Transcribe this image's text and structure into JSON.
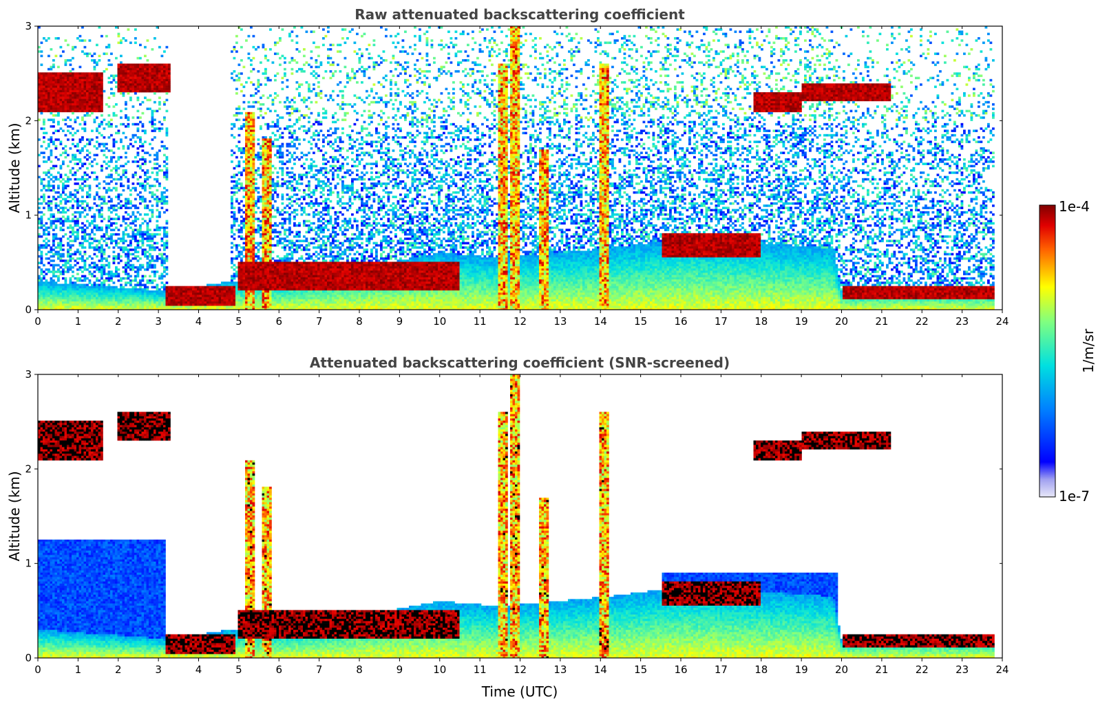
{
  "chart_data": [
    {
      "type": "heatmap",
      "title": "Raw attenuated backscattering coefficient",
      "xlabel": "",
      "ylabel": "Altitude (km)",
      "xlim": [
        0,
        24
      ],
      "ylim": [
        0,
        3
      ],
      "xticks": [
        "0",
        "1",
        "2",
        "3",
        "4",
        "5",
        "6",
        "7",
        "8",
        "9",
        "10",
        "11",
        "12",
        "13",
        "14",
        "15",
        "16",
        "17",
        "18",
        "19",
        "20",
        "21",
        "22",
        "23",
        "24"
      ],
      "yticks": [
        "0",
        "1",
        "2",
        "3"
      ],
      "colorscale": "jet",
      "color_range": [
        1e-07,
        0.0001
      ],
      "features": {
        "boundary_layer": [
          [
            0,
            0.3
          ],
          [
            3.2,
            0.2
          ],
          [
            4.8,
            0.3
          ],
          [
            6,
            0.3
          ],
          [
            8,
            0.45
          ],
          [
            10,
            0.6
          ],
          [
            11.5,
            0.55
          ],
          [
            14.2,
            0.65
          ],
          [
            16,
            0.75
          ],
          [
            18,
            0.7
          ],
          [
            19.8,
            0.65
          ],
          [
            20,
            0.2
          ],
          [
            23.8,
            0.22
          ]
        ],
        "cloud_layers": [
          {
            "x": [
              0,
              1.6
            ],
            "y": [
              2.1,
              2.5
            ]
          },
          {
            "x": [
              2.0,
              3.3
            ],
            "y": [
              2.3,
              2.6
            ]
          },
          {
            "x": [
              3.2,
              4.9
            ],
            "y": [
              0.05,
              0.25
            ]
          },
          {
            "x": [
              5.0,
              10.5
            ],
            "y": [
              0.2,
              0.5
            ]
          },
          {
            "x": [
              15.5,
              18.0
            ],
            "y": [
              0.55,
              0.8
            ]
          },
          {
            "x": [
              17.8,
              19.0
            ],
            "y": [
              2.1,
              2.3
            ]
          },
          {
            "x": [
              19.0,
              21.2
            ],
            "y": [
              2.2,
              2.4
            ]
          },
          {
            "x": [
              20.0,
              23.8
            ],
            "y": [
              0.1,
              0.25
            ]
          }
        ],
        "precipitation_shafts": [
          [
            5.3,
            2.1
          ],
          [
            5.7,
            1.8
          ],
          [
            11.6,
            2.6
          ],
          [
            11.9,
            3.0
          ],
          [
            12.6,
            1.7
          ],
          [
            14.1,
            2.6
          ]
        ],
        "no_data_after": 23.8
      }
    },
    {
      "type": "heatmap",
      "title": "Attenuated backscattering coefficient (SNR-screened)",
      "xlabel": "Time (UTC)",
      "ylabel": "Altitude (km)",
      "xlim": [
        0,
        24
      ],
      "ylim": [
        0,
        3
      ],
      "xticks": [
        "0",
        "1",
        "2",
        "3",
        "4",
        "5",
        "6",
        "7",
        "8",
        "9",
        "10",
        "11",
        "12",
        "13",
        "14",
        "15",
        "16",
        "17",
        "18",
        "19",
        "20",
        "21",
        "22",
        "23",
        "24"
      ],
      "yticks": [
        "0",
        "1",
        "2",
        "3"
      ],
      "colorscale": "jet",
      "color_range": [
        1e-07,
        0.0001
      ]
    }
  ],
  "colorbar": {
    "max_label": "1e-4",
    "min_label": "1e-7",
    "label": "1/m/sr"
  }
}
